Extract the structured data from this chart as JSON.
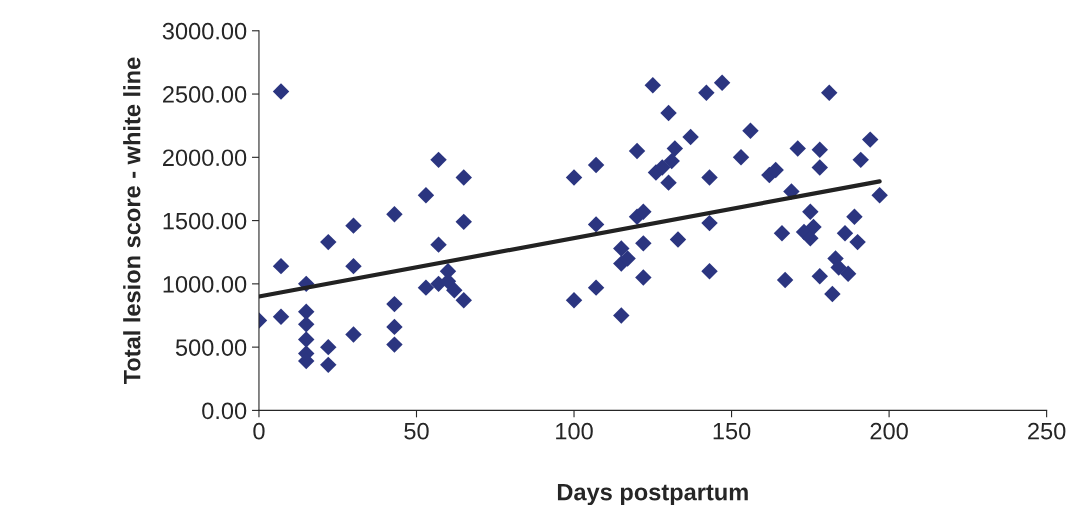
{
  "chart_data": {
    "type": "scatter",
    "xlabel": "Days postpartum",
    "ylabel": "Total lesion score - white line",
    "xlim": [
      0,
      250
    ],
    "ylim": [
      0,
      3000
    ],
    "xticks": [
      0,
      50,
      100,
      150,
      200,
      250
    ],
    "yticks": [
      {
        "value": 0,
        "label": "0.00"
      },
      {
        "value": 500,
        "label": "500.00"
      },
      {
        "value": 1000,
        "label": "1000.00"
      },
      {
        "value": 1500,
        "label": "1500.00"
      },
      {
        "value": 2000,
        "label": "2000.00"
      },
      {
        "value": 2500,
        "label": "2500.00"
      },
      {
        "value": 3000,
        "label": "3000.00"
      }
    ],
    "grid": false,
    "legend": false,
    "series": [
      {
        "marker": "diamond",
        "color": "#2b3580",
        "x": [
          0,
          7,
          7,
          7,
          15,
          15,
          15,
          15,
          15,
          15,
          22,
          22,
          22,
          30,
          30,
          30,
          43,
          43,
          43,
          43,
          53,
          53,
          57,
          57,
          57,
          60,
          60,
          62,
          65,
          65,
          65,
          100,
          100,
          107,
          107,
          107,
          115,
          115,
          115,
          117,
          120,
          120,
          122,
          122,
          122,
          125,
          126,
          128,
          130,
          130,
          131,
          132,
          133,
          137,
          142,
          143,
          143,
          143,
          147,
          153,
          156,
          162,
          164,
          167,
          166,
          169,
          171,
          173,
          175,
          175,
          176,
          178,
          178,
          178,
          181,
          182,
          183,
          184,
          186,
          187,
          189,
          190,
          191,
          194,
          197
        ],
        "values": [
          710,
          2520,
          1140,
          740,
          1000,
          780,
          680,
          560,
          450,
          390,
          1330,
          500,
          360,
          1460,
          1140,
          600,
          1550,
          840,
          660,
          520,
          1700,
          970,
          1980,
          1310,
          1000,
          1100,
          1020,
          950,
          1840,
          1490,
          870,
          1840,
          870,
          1940,
          1470,
          970,
          1280,
          1160,
          750,
          1200,
          2050,
          1530,
          1570,
          1320,
          1050,
          2570,
          1880,
          1920,
          2350,
          1800,
          1970,
          2070,
          1350,
          2160,
          2510,
          1840,
          1480,
          1100,
          2590,
          2000,
          2210,
          1860,
          1900,
          1030,
          1400,
          1730,
          2070,
          1410,
          1570,
          1360,
          1450,
          2060,
          1920,
          1060,
          2510,
          920,
          1200,
          1130,
          1400,
          1080,
          1530,
          1330,
          1980,
          2140,
          1700
        ]
      },
      {
        "type": "line",
        "marker": "none",
        "line_style": "solid",
        "color": "#222222",
        "x": [
          0,
          197
        ],
        "values": [
          900,
          1810
        ]
      }
    ]
  }
}
